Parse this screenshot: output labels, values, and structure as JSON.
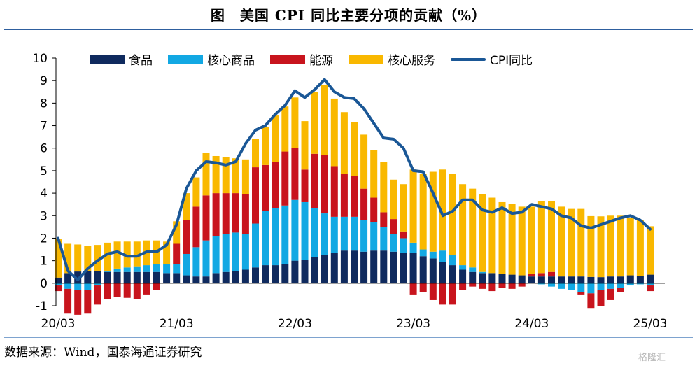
{
  "title": "图　美国 CPI 同比主要分项的贡献（%）",
  "source": "数据来源：Wind，国泰海通证券研究",
  "watermark": "格隆汇",
  "colors": {
    "food": "#0f2a5e",
    "core_goods": "#12a8e3",
    "energy": "#c8141d",
    "core_services": "#f9b800",
    "cpi_line": "#1a5796"
  },
  "chart_data": {
    "type": "bar",
    "stacked": true,
    "title": "美国 CPI 同比主要分项的贡献（%）",
    "ylim": [
      -1,
      10
    ],
    "yticks": [
      -1,
      0,
      1,
      2,
      3,
      4,
      5,
      6,
      7,
      8,
      9,
      10
    ],
    "xtick_labels": [
      "20/03",
      "21/03",
      "22/03",
      "23/03",
      "24/03",
      "25/03"
    ],
    "xtick_positions": [
      0,
      12,
      24,
      36,
      48,
      60
    ],
    "categories": [
      "20/03",
      "20/04",
      "20/05",
      "20/06",
      "20/07",
      "20/08",
      "20/09",
      "20/10",
      "20/11",
      "20/12",
      "21/01",
      "21/02",
      "21/03",
      "21/04",
      "21/05",
      "21/06",
      "21/07",
      "21/08",
      "21/09",
      "21/10",
      "21/11",
      "21/12",
      "22/01",
      "22/02",
      "22/03",
      "22/04",
      "22/05",
      "22/06",
      "22/07",
      "22/08",
      "22/09",
      "22/10",
      "22/11",
      "22/12",
      "23/01",
      "23/02",
      "23/03",
      "23/04",
      "23/05",
      "23/06",
      "23/07",
      "23/08",
      "23/09",
      "23/10",
      "23/11",
      "23/12",
      "24/01",
      "24/02",
      "24/03",
      "24/04",
      "24/05",
      "24/06",
      "24/07",
      "24/08",
      "24/09",
      "24/10",
      "24/11",
      "24/12",
      "25/01",
      "25/02",
      "25/03"
    ],
    "series": [
      {
        "name": "食品",
        "key": "food",
        "values": [
          0.25,
          0.45,
          0.52,
          0.55,
          0.55,
          0.5,
          0.5,
          0.5,
          0.5,
          0.5,
          0.5,
          0.45,
          0.45,
          0.35,
          0.3,
          0.3,
          0.45,
          0.5,
          0.55,
          0.6,
          0.7,
          0.8,
          0.8,
          0.85,
          1.0,
          1.05,
          1.15,
          1.25,
          1.35,
          1.45,
          1.45,
          1.4,
          1.45,
          1.45,
          1.4,
          1.35,
          1.35,
          1.2,
          1.1,
          0.95,
          0.8,
          0.6,
          0.5,
          0.45,
          0.45,
          0.4,
          0.38,
          0.35,
          0.3,
          0.3,
          0.3,
          0.3,
          0.3,
          0.3,
          0.28,
          0.27,
          0.3,
          0.3,
          0.35,
          0.32,
          0.38
        ]
      },
      {
        "name": "核心商品",
        "key": "core_goods",
        "values": [
          -0.1,
          -0.25,
          -0.3,
          -0.3,
          -0.1,
          0.05,
          0.15,
          0.2,
          0.25,
          0.3,
          0.35,
          0.4,
          0.4,
          0.95,
          1.3,
          1.6,
          1.65,
          1.7,
          1.7,
          1.6,
          1.95,
          2.4,
          2.55,
          2.6,
          2.7,
          2.55,
          2.2,
          1.85,
          1.6,
          1.5,
          1.5,
          1.4,
          1.25,
          1.05,
          0.8,
          0.65,
          0.45,
          0.3,
          0.3,
          0.5,
          0.45,
          0.2,
          0.2,
          0.05,
          0.0,
          0.0,
          0.0,
          0.0,
          0.0,
          -0.05,
          -0.15,
          -0.25,
          -0.3,
          -0.4,
          -0.45,
          -0.3,
          -0.25,
          -0.2,
          -0.1,
          -0.05,
          -0.1
        ]
      },
      {
        "name": "能源",
        "key": "energy",
        "values": [
          -0.25,
          -1.1,
          -1.1,
          -1.05,
          -0.85,
          -0.7,
          -0.6,
          -0.65,
          -0.7,
          -0.5,
          -0.3,
          0.0,
          0.9,
          1.5,
          1.8,
          2.0,
          1.9,
          1.8,
          1.75,
          1.75,
          2.5,
          2.05,
          2.05,
          2.4,
          2.3,
          1.45,
          2.4,
          2.6,
          2.25,
          1.9,
          1.8,
          1.4,
          1.1,
          0.65,
          0.65,
          0.3,
          -0.5,
          -0.4,
          -0.75,
          -0.95,
          -0.95,
          -0.3,
          -0.15,
          -0.25,
          -0.35,
          -0.2,
          -0.25,
          -0.15,
          0.1,
          0.15,
          0.2,
          0.0,
          0.0,
          -0.1,
          -0.65,
          -0.7,
          -0.5,
          -0.2,
          0.0,
          0.0,
          -0.25
        ]
      },
      {
        "name": "核心服务",
        "key": "core_services",
        "values": [
          1.7,
          1.3,
          1.2,
          1.1,
          1.15,
          1.25,
          1.2,
          1.15,
          1.1,
          1.1,
          1.05,
          1.0,
          1.0,
          1.2,
          1.3,
          1.9,
          1.65,
          1.6,
          1.55,
          1.55,
          1.25,
          1.7,
          2.05,
          2.0,
          2.25,
          2.15,
          2.75,
          3.1,
          3.0,
          2.75,
          2.4,
          2.4,
          2.1,
          2.25,
          1.75,
          2.1,
          3.25,
          3.35,
          3.55,
          3.6,
          3.6,
          3.6,
          3.5,
          3.45,
          3.35,
          3.2,
          3.15,
          3.05,
          3.0,
          3.2,
          3.15,
          3.1,
          3.0,
          3.0,
          2.7,
          2.7,
          2.7,
          2.7,
          2.55,
          2.5,
          2.15
        ]
      },
      {
        "name": "CPI同比",
        "key": "cpi",
        "type": "line",
        "values": [
          2.0,
          0.55,
          0.15,
          0.65,
          1.0,
          1.3,
          1.4,
          1.2,
          1.2,
          1.4,
          1.4,
          1.7,
          2.6,
          4.2,
          5.0,
          5.4,
          5.35,
          5.25,
          5.4,
          6.2,
          6.8,
          7.0,
          7.5,
          7.9,
          8.55,
          8.25,
          8.6,
          9.05,
          8.5,
          8.25,
          8.2,
          7.75,
          7.1,
          6.45,
          6.4,
          6.0,
          5.0,
          4.95,
          4.0,
          3.0,
          3.2,
          3.7,
          3.7,
          3.25,
          3.15,
          3.35,
          3.1,
          3.15,
          3.5,
          3.4,
          3.3,
          3.0,
          2.9,
          2.55,
          2.45,
          2.6,
          2.75,
          2.9,
          3.0,
          2.8,
          2.4
        ]
      }
    ]
  },
  "legend": [
    {
      "key": "food",
      "label": "食品",
      "kind": "bar"
    },
    {
      "key": "core_goods",
      "label": "核心商品",
      "kind": "bar"
    },
    {
      "key": "energy",
      "label": "能源",
      "kind": "bar"
    },
    {
      "key": "core_services",
      "label": "核心服务",
      "kind": "bar"
    },
    {
      "key": "cpi_line",
      "label": "CPI同比",
      "kind": "line"
    }
  ]
}
